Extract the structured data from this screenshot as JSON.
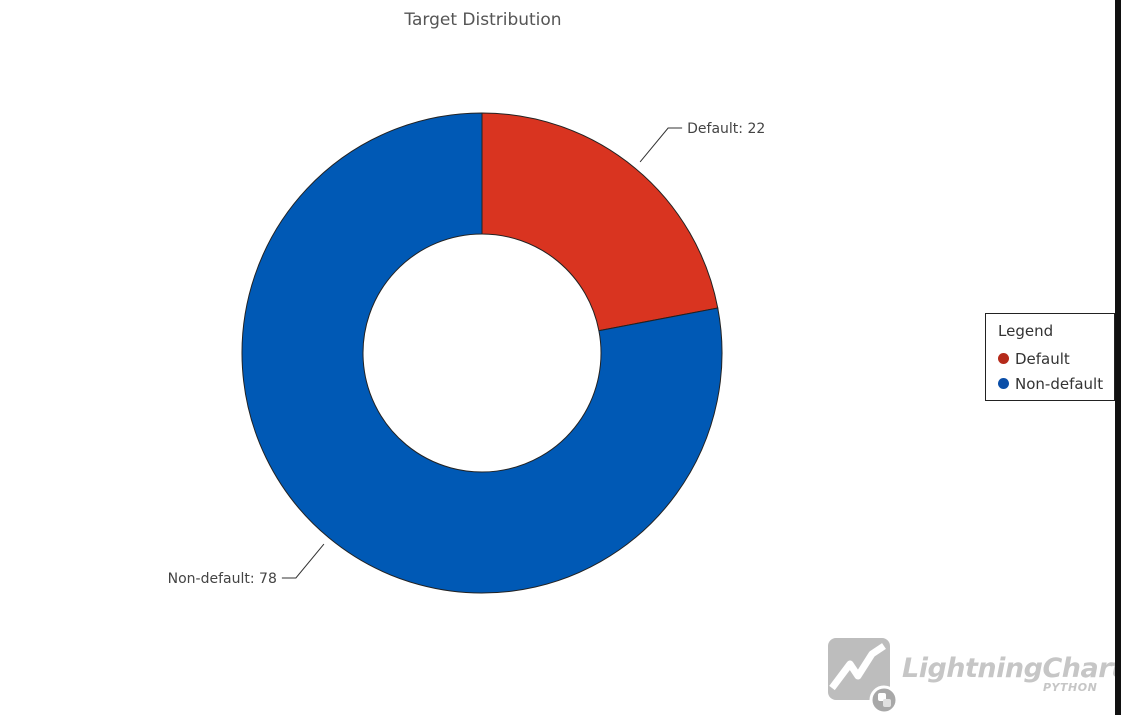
{
  "chart_data": {
    "type": "pie",
    "title": "Target Distribution",
    "categories": [
      "Default",
      "Non-default"
    ],
    "values": [
      22,
      78
    ],
    "slice_labels": [
      "Default: 22",
      "Non-default: 78"
    ],
    "colors": [
      "#d93420",
      "#0059b5"
    ],
    "legend": {
      "title": "Legend",
      "placement": "right",
      "items": [
        "Default",
        "Non-default"
      ]
    },
    "grid": false
  },
  "watermark": {
    "brand": "LightningChart",
    "sub": "PYTHON",
    "registered": "®"
  }
}
